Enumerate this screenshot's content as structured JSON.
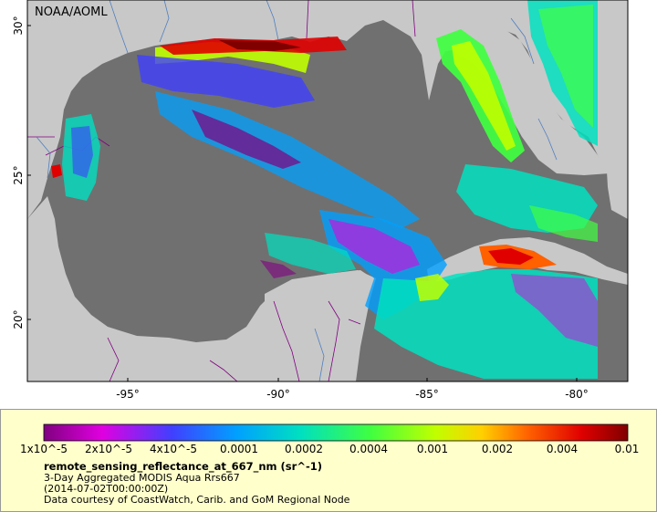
{
  "map": {
    "agency_label": "NOAA/AOML",
    "x_ticks": [
      "-95°",
      "-90°",
      "-85°",
      "-80°"
    ],
    "y_ticks": [
      "30°",
      "25°",
      "20°"
    ],
    "colors": {
      "ocean_nodata": "#707070",
      "land": "#c8c8c8",
      "boundaries": "#800080",
      "rivers": "#4f7fc0"
    }
  },
  "colorbar": {
    "tick_labels": [
      "1x10^-5",
      "2x10^-5",
      "4x10^-5",
      "0.0001",
      "0.0002",
      "0.0004",
      "0.001",
      "0.002",
      "0.004",
      "0.01"
    ],
    "colors": [
      "#800080",
      "#e000e0",
      "#4040ff",
      "#00a0ff",
      "#00e0c0",
      "#40ff40",
      "#c0ff00",
      "#ffd000",
      "#ff6000",
      "#e00000",
      "#800000"
    ]
  },
  "info": {
    "variable": "remote_sensing_reflectance_at_667_nm (sr^-1)",
    "line1": "3-Day Aggregated MODIS Aqua Rrs667",
    "line2": "(2014-07-02T00:00:00Z)",
    "line3": "Data courtesy of CoastWatch, Carib. and GoM Regional Node"
  }
}
